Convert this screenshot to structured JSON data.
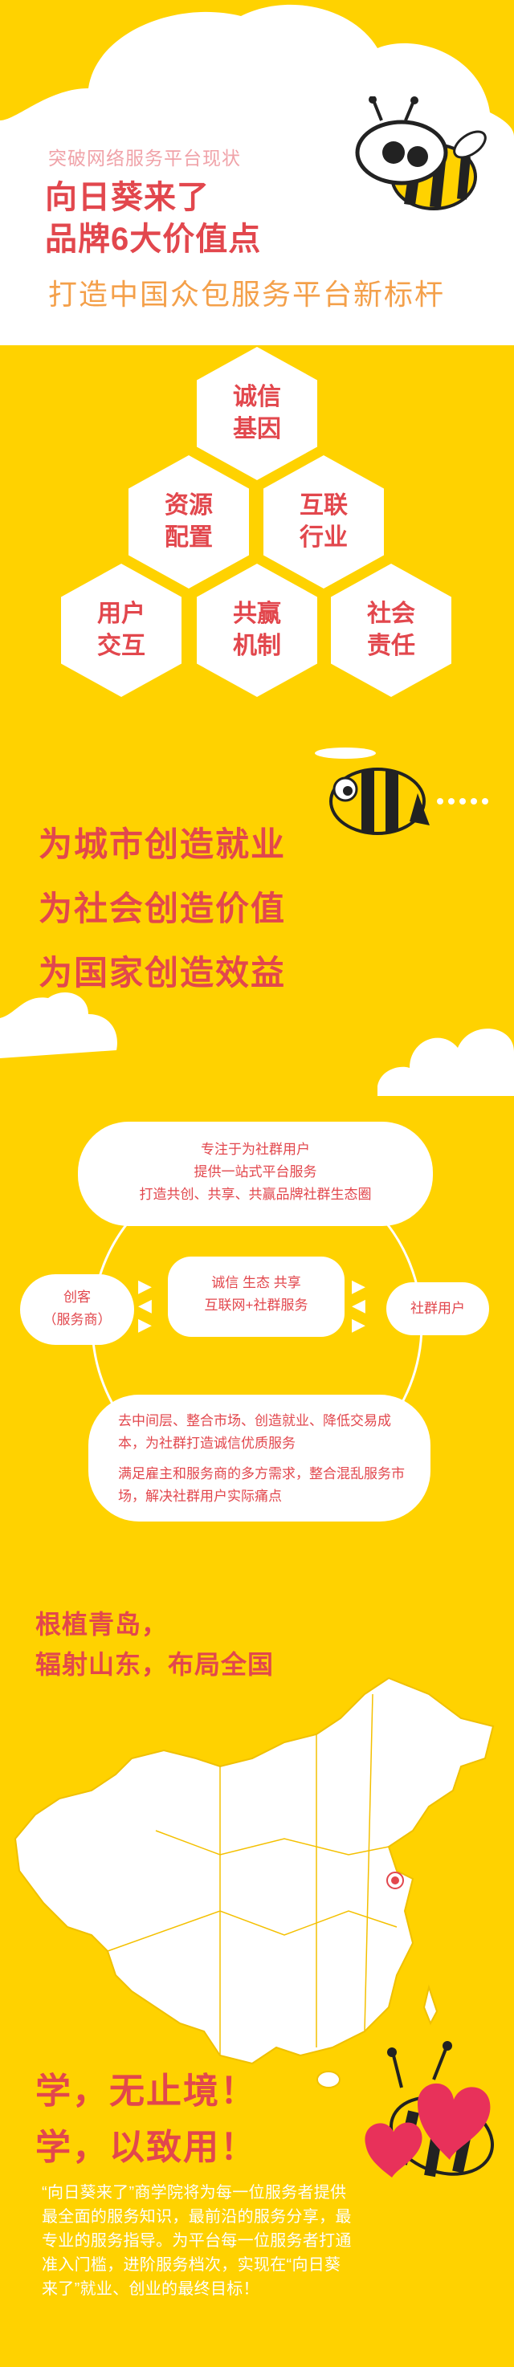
{
  "header": {
    "tagline": "突破网络服务平台现状",
    "title_line1": "向日葵来了",
    "title_line2": "品牌6大价值点",
    "subtitle": "打造中国众包服务平台新标杆"
  },
  "hexagons": [
    {
      "l1": "诚信",
      "l2": "基因"
    },
    {
      "l1": "资源",
      "l2": "配置"
    },
    {
      "l1": "互联",
      "l2": "行业"
    },
    {
      "l1": "用户",
      "l2": "交互"
    },
    {
      "l1": "共赢",
      "l2": "机制"
    },
    {
      "l1": "社会",
      "l2": "责任"
    }
  ],
  "slogans": [
    "为城市创造就业",
    "为社会创造价值",
    "为国家创造效益"
  ],
  "ecosystem": {
    "top_l1": "专注于为社群用户",
    "top_l2": "提供一站式平台服务",
    "top_l3": "打造共创、共享、共赢品牌社群生态圈",
    "mid_l1": "诚信  生态  共享",
    "mid_l2": "互联网+社群服务",
    "left_l1": "创客",
    "left_l2": "（服务商）",
    "right": "社群用户",
    "bottom_p1": "去中间层、整合市场、创造就业、降低交易成本，为社群打造诚信优质服务",
    "bottom_p2": "满足雇主和服务商的多方需求，整合混乱服务市场，解决社群用户实际痛点"
  },
  "map": {
    "title_l1": "根植青岛，",
    "title_l2": "辐射山东，布局全国"
  },
  "learn": {
    "l1": "学，无止境！",
    "l2": "学，以致用！"
  },
  "paragraph": "“向日葵来了”商学院将为每一位服务者提供最全面的服务知识，最前沿的服务分享，最专业的服务指导。为平台每一位服务者打通准入门槛，进阶服务档次，实现在“向日葵来了”就业、创业的最终目标！",
  "colors": {
    "background": "#ffd200",
    "accent_red": "#e2474d",
    "orange": "#f4a04a",
    "bee_black": "#222222",
    "heart_pink": "#e8315a"
  },
  "icons": [
    "bee-mascot-icon",
    "flying-bee-icon",
    "cloud-icon",
    "china-map-icon",
    "heart-bee-icon"
  ]
}
